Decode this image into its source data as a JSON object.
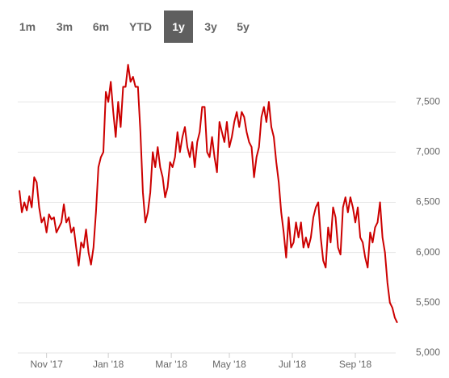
{
  "range_buttons": {
    "labels": [
      "1m",
      "3m",
      "6m",
      "YTD",
      "1y",
      "3y",
      "5y"
    ],
    "selected": 4
  },
  "chart_data": {
    "type": "line",
    "series": [
      {
        "color": "#cc0000",
        "values": [
          6620,
          6400,
          6500,
          6420,
          6560,
          6450,
          6750,
          6700,
          6450,
          6300,
          6350,
          6200,
          6380,
          6330,
          6350,
          6200,
          6250,
          6300,
          6480,
          6300,
          6350,
          6200,
          6250,
          6050,
          5870,
          6100,
          6050,
          6230,
          6000,
          5880,
          6050,
          6400,
          6850,
          6950,
          7000,
          7600,
          7500,
          7700,
          7400,
          7150,
          7500,
          7250,
          7650,
          7650,
          7870,
          7700,
          7750,
          7650,
          7650,
          7200,
          6600,
          6300,
          6400,
          6600,
          7000,
          6850,
          7050,
          6850,
          6750,
          6550,
          6650,
          6900,
          6850,
          6950,
          7200,
          7000,
          7150,
          7250,
          7050,
          6950,
          7100,
          6850,
          7100,
          7200,
          7450,
          7450,
          7000,
          6950,
          7150,
          6950,
          6800,
          7300,
          7200,
          7100,
          7300,
          7050,
          7150,
          7300,
          7400,
          7250,
          7400,
          7350,
          7200,
          7100,
          7050,
          6750,
          6950,
          7050,
          7350,
          7450,
          7300,
          7500,
          7250,
          7150,
          6900,
          6700,
          6400,
          6200,
          5950,
          6350,
          6050,
          6100,
          6300,
          6150,
          6300,
          6050,
          6150,
          6050,
          6150,
          6350,
          6450,
          6500,
          6150,
          5920,
          5850,
          6250,
          6100,
          6450,
          6350,
          6050,
          5980,
          6450,
          6550,
          6400,
          6550,
          6450,
          6300,
          6450,
          6150,
          6100,
          5950,
          5850,
          6200,
          6100,
          6250,
          6300,
          6500,
          6150,
          6000,
          5700,
          5500,
          5450,
          5350,
          5300
        ]
      }
    ],
    "xlim": [
      0,
      153
    ],
    "xticks": [
      {
        "value": 11,
        "label": "Nov '17"
      },
      {
        "value": 36,
        "label": "Jan '18"
      },
      {
        "value": 61.5,
        "label": "Mar '18"
      },
      {
        "value": 85,
        "label": "May '18"
      },
      {
        "value": 110.5,
        "label": "Jul '18"
      },
      {
        "value": 136,
        "label": "Sep '18"
      }
    ],
    "ylim": [
      5000,
      8000
    ],
    "yticks": [
      {
        "value": 5000,
        "label": "5,000"
      },
      {
        "value": 5500,
        "label": "5,500"
      },
      {
        "value": 6000,
        "label": "6,000"
      },
      {
        "value": 6500,
        "label": "6,500"
      },
      {
        "value": 7000,
        "label": "7,000"
      },
      {
        "value": 7500,
        "label": "7,500"
      }
    ],
    "grid": true
  }
}
